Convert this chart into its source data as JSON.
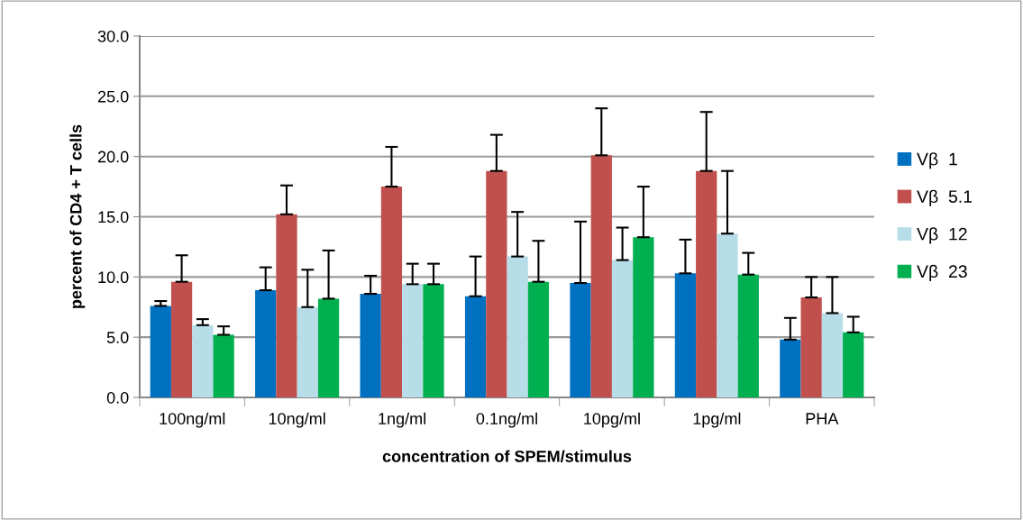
{
  "chart_data": {
    "type": "bar",
    "xlabel": "concentration of SPEM/stimulus",
    "ylabel": "percent of CD4 + T cells",
    "categories": [
      "100ng/ml",
      "10ng/ml",
      "1ng/ml",
      "0.1ng/ml",
      "10pg/ml",
      "1pg/ml",
      "PHA"
    ],
    "series": [
      {
        "name": "Vβ  1",
        "color": "#0070c0",
        "values": [
          7.6,
          8.9,
          8.6,
          8.4,
          9.5,
          10.3,
          4.8
        ],
        "errors": [
          [
            7.6,
            8.0
          ],
          [
            8.9,
            10.8
          ],
          [
            8.6,
            10.1
          ],
          [
            8.4,
            11.7
          ],
          [
            9.5,
            14.6
          ],
          [
            10.3,
            13.1
          ],
          [
            4.8,
            6.6
          ]
        ]
      },
      {
        "name": "Vβ  5.1",
        "color": "#c0504d",
        "values": [
          9.6,
          15.2,
          17.5,
          18.8,
          20.1,
          18.8,
          8.3
        ],
        "errors": [
          [
            9.6,
            11.8
          ],
          [
            15.2,
            17.6
          ],
          [
            17.5,
            20.8
          ],
          [
            18.8,
            21.8
          ],
          [
            20.1,
            24.0
          ],
          [
            18.8,
            23.7
          ],
          [
            8.3,
            10.0
          ]
        ]
      },
      {
        "name": "Vβ  12",
        "color": "#b7dde8",
        "values": [
          6.0,
          7.5,
          9.4,
          11.7,
          11.4,
          13.6,
          7.0
        ],
        "errors": [
          [
            6.0,
            6.5
          ],
          [
            7.5,
            10.6
          ],
          [
            9.4,
            11.1
          ],
          [
            11.7,
            15.4
          ],
          [
            11.4,
            14.1
          ],
          [
            13.6,
            18.8
          ],
          [
            7.0,
            10.0
          ]
        ]
      },
      {
        "name": "Vβ  23",
        "color": "#00b050",
        "values": [
          5.2,
          8.2,
          9.4,
          9.6,
          13.3,
          10.2,
          5.4
        ],
        "errors": [
          [
            5.2,
            5.9
          ],
          [
            8.2,
            12.2
          ],
          [
            9.4,
            11.1
          ],
          [
            9.6,
            13.0
          ],
          [
            13.3,
            17.5
          ],
          [
            10.2,
            12.0
          ],
          [
            5.4,
            6.7
          ]
        ]
      }
    ],
    "ylim": [
      0,
      30
    ],
    "yticks": [
      {
        "value": 0,
        "label": "0.0"
      },
      {
        "value": 5,
        "label": "5.0"
      },
      {
        "value": 10,
        "label": "10.0"
      },
      {
        "value": 15,
        "label": "15.0"
      },
      {
        "value": 20,
        "label": "20.0"
      },
      {
        "value": 25,
        "label": "25.0"
      },
      {
        "value": 30,
        "label": "30.0"
      }
    ],
    "grid": "y",
    "legend": "right"
  }
}
